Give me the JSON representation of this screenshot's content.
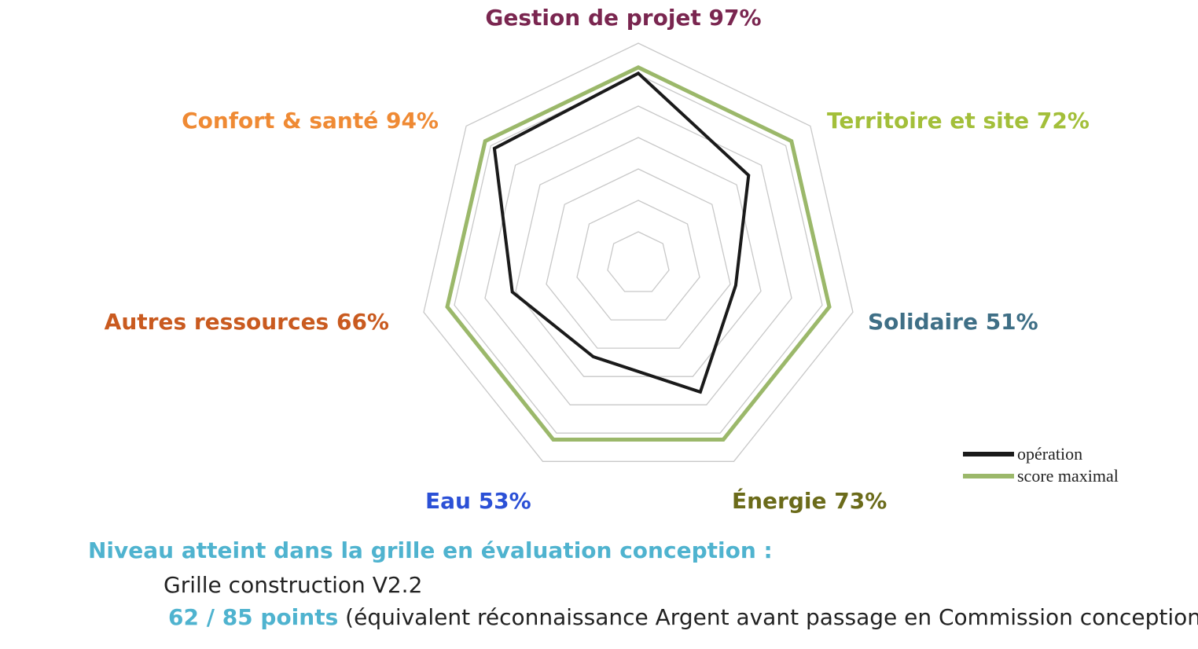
{
  "chart_data": {
    "type": "radar",
    "categories": [
      {
        "name": "Gestion de projet",
        "value_label": "97%",
        "color": "#7a2650"
      },
      {
        "name": "Territoire et site",
        "value_label": "72%",
        "color": "#a3bf3a"
      },
      {
        "name": "Solidaire",
        "value_label": "51%",
        "color": "#3f6f86"
      },
      {
        "name": "Énergie",
        "value_label": "73%",
        "color": "#6b6b1a"
      },
      {
        "name": "Eau",
        "value_label": "53%",
        "color": "#2b50d6"
      },
      {
        "name": "Autres ressources",
        "value_label": "66%",
        "color": "#c95a1f"
      },
      {
        "name": "Confort & santé",
        "value_label": "94%",
        "color": "#ef8a34"
      }
    ],
    "series": [
      {
        "name": "opération",
        "color": "#1a1a1a",
        "values": [
          0.97,
          0.72,
          0.51,
          0.73,
          0.53,
          0.66,
          0.94
        ]
      },
      {
        "name": "score maximal",
        "color": "#9bb86a",
        "values": [
          1,
          1,
          1,
          1,
          1,
          1,
          1
        ]
      }
    ],
    "rlim": [
      0,
      1
    ],
    "grid_levels": 7,
    "legend_position": "bottom-right"
  },
  "footer": {
    "heading": "Niveau atteint dans la grille en évaluation conception :",
    "grid_name": "Grille construction V2.2",
    "points": "62 / 85 points",
    "points_note": " (équivalent réconnaissance Argent avant passage en Commission conception)"
  }
}
